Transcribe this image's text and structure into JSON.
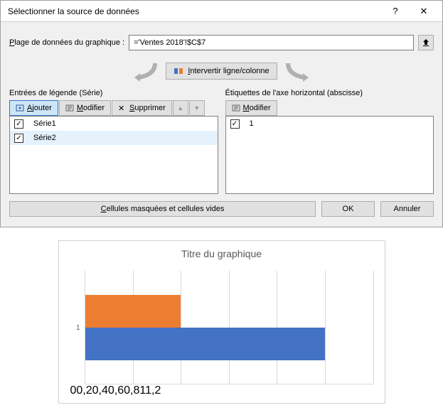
{
  "dialog": {
    "title": "Sélectionner la source de données",
    "help_icon": "?",
    "close_icon": "✕",
    "range_label_pre": "P",
    "range_label_rest": "lage de données du graphique :",
    "range_value": "='Ventes 2018'!$C$7",
    "swap_label": "Intervertir ligne/colonne",
    "legend_label": "Entrées de légende (Série)",
    "axis_label": "Étiquettes de l'axe horizontal (abscisse)",
    "btn_add_pre": "A",
    "btn_add_rest": "jouter",
    "btn_edit_pre": "M",
    "btn_edit_rest": "odifier",
    "btn_edit2_pre": "M",
    "btn_edit2_rest": "odifier",
    "btn_delete_pre": "S",
    "btn_delete_rest": "upprimer",
    "series": [
      {
        "label": "Série1",
        "checked": true,
        "selected": false
      },
      {
        "label": "Série2",
        "checked": true,
        "selected": true
      }
    ],
    "axis_items": [
      {
        "label": "1",
        "checked": true
      }
    ],
    "hidden_cells_pre": "C",
    "hidden_cells_rest": "ellules masquées et cellules vides",
    "ok": "OK",
    "cancel": "Annuler"
  },
  "chart": {
    "title": "Titre du graphique",
    "type": "bar-horizontal",
    "y_category": "1",
    "x_ticks": [
      "0",
      "0,2",
      "0,4",
      "0,6",
      "0,8",
      "1",
      "1,2"
    ],
    "xlim": [
      0,
      1.2
    ],
    "bars": [
      {
        "value": 0.4,
        "color": "#ed7d31",
        "y_offset": 0
      },
      {
        "value": 1.0,
        "color": "#4472c4",
        "y_offset": 1
      }
    ],
    "grid_color": "#d9d9d9",
    "text_color": "#595959",
    "bg": "#ffffff",
    "title_fontsize": 14,
    "tick_fontsize": 10
  }
}
